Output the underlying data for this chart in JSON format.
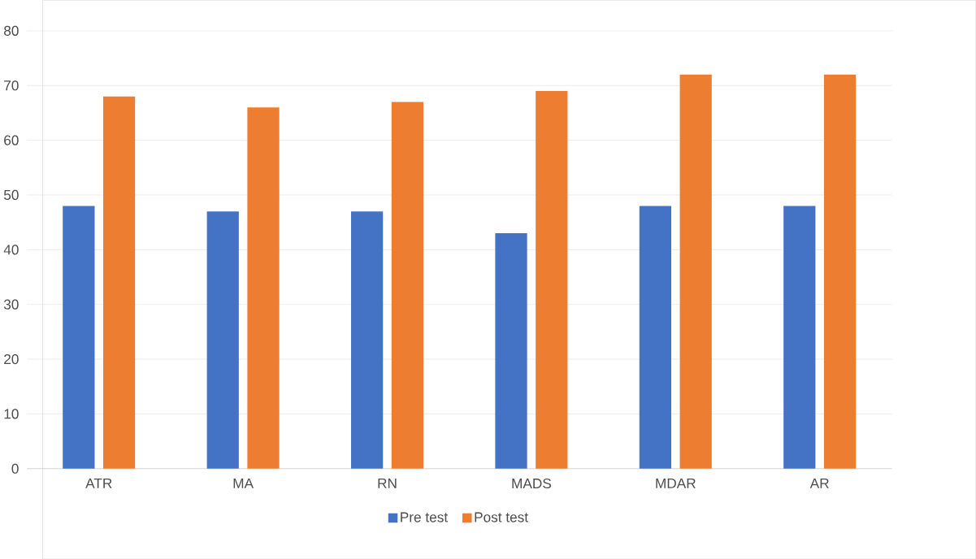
{
  "chart_data": {
    "type": "bar",
    "categories": [
      "ATR",
      "MA",
      "RN",
      "MADS",
      "MDAR",
      "AR"
    ],
    "series": [
      {
        "name": "Pre test",
        "color": "#4472c4",
        "values": [
          48,
          47,
          47,
          43,
          48,
          48
        ]
      },
      {
        "name": "Post test",
        "color": "#ed7d31",
        "values": [
          68,
          66,
          67,
          69,
          72,
          72
        ]
      }
    ],
    "ylim": [
      0,
      80
    ],
    "yticks": [
      0,
      10,
      20,
      30,
      40,
      50,
      60,
      70,
      80
    ],
    "grid": "y",
    "legend": "bottom"
  }
}
